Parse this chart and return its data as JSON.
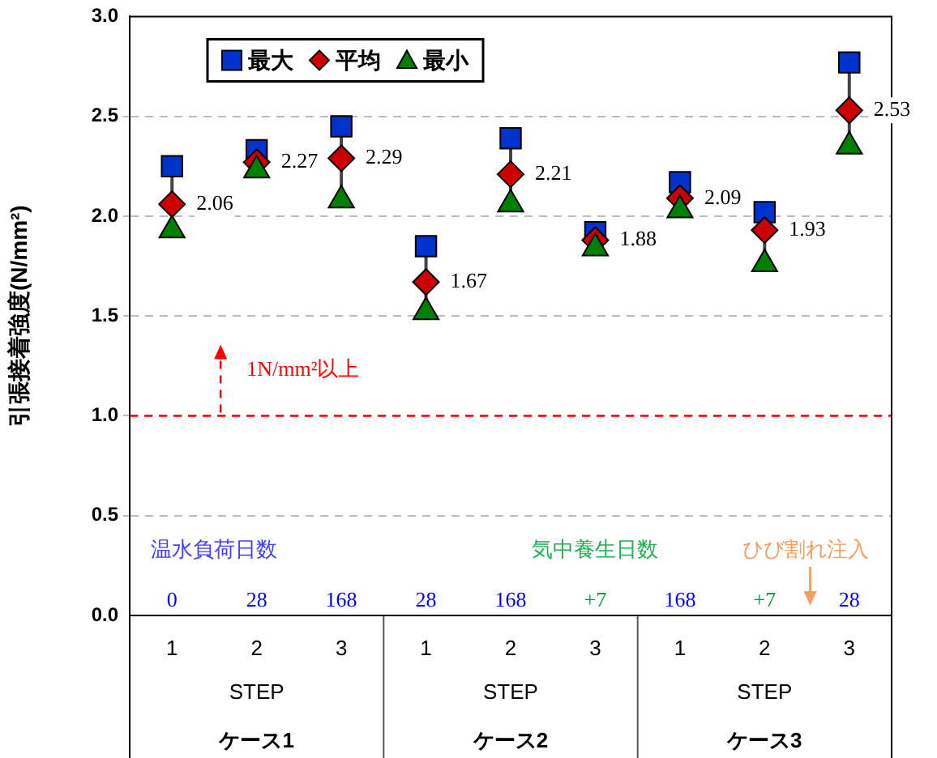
{
  "chart_data": {
    "type": "scatter",
    "ylabel": "引張接着強度(N/mm²)",
    "categories": [
      "1",
      "2",
      "3",
      "1",
      "2",
      "3",
      "1",
      "2",
      "3"
    ],
    "series": [
      {
        "name": "最大",
        "color": "#0033cc",
        "marker": "square",
        "values": [
          2.25,
          2.33,
          2.45,
          1.85,
          2.39,
          1.92,
          2.17,
          2.02,
          2.77
        ]
      },
      {
        "name": "平均",
        "color": "#cc0000",
        "marker": "diamond",
        "values": [
          2.06,
          2.27,
          2.29,
          1.67,
          2.21,
          1.88,
          2.09,
          1.93,
          2.53
        ],
        "value_labels": [
          "2.06",
          "2.27",
          "2.29",
          "1.67",
          "2.21",
          "1.88",
          "2.09",
          "1.93",
          "2.53"
        ]
      },
      {
        "name": "最小",
        "color": "#008000",
        "marker": "triangle",
        "values": [
          1.93,
          2.23,
          2.08,
          1.52,
          2.06,
          1.84,
          2.03,
          1.76,
          2.35
        ]
      }
    ],
    "ylim": [
      0,
      3
    ],
    "yticks": [
      {
        "value": 0,
        "label": "0.0"
      },
      {
        "value": 0.5,
        "label": "0.5"
      },
      {
        "value": 1,
        "label": "1.0"
      },
      {
        "value": 1.5,
        "label": "1.5"
      },
      {
        "value": 2,
        "label": "2.0"
      },
      {
        "value": 2.5,
        "label": "2.5"
      },
      {
        "value": 3,
        "label": "3.0"
      }
    ],
    "grid": "y",
    "legend": "top left",
    "ref_lines": [
      {
        "axis": "y",
        "value": 1,
        "label": "1N/mm²以上",
        "color": "#ff0000",
        "line_style": "dashed"
      }
    ],
    "annotations": [
      "0",
      "28",
      "168",
      "28",
      "168",
      "+7",
      "168",
      "+7",
      "28",
      "温水負荷日数",
      "気中養生日数",
      "ひび割れ注入",
      "STEP",
      "STEP",
      "STEP",
      "ケース1",
      "ケース2",
      "ケース3"
    ]
  }
}
